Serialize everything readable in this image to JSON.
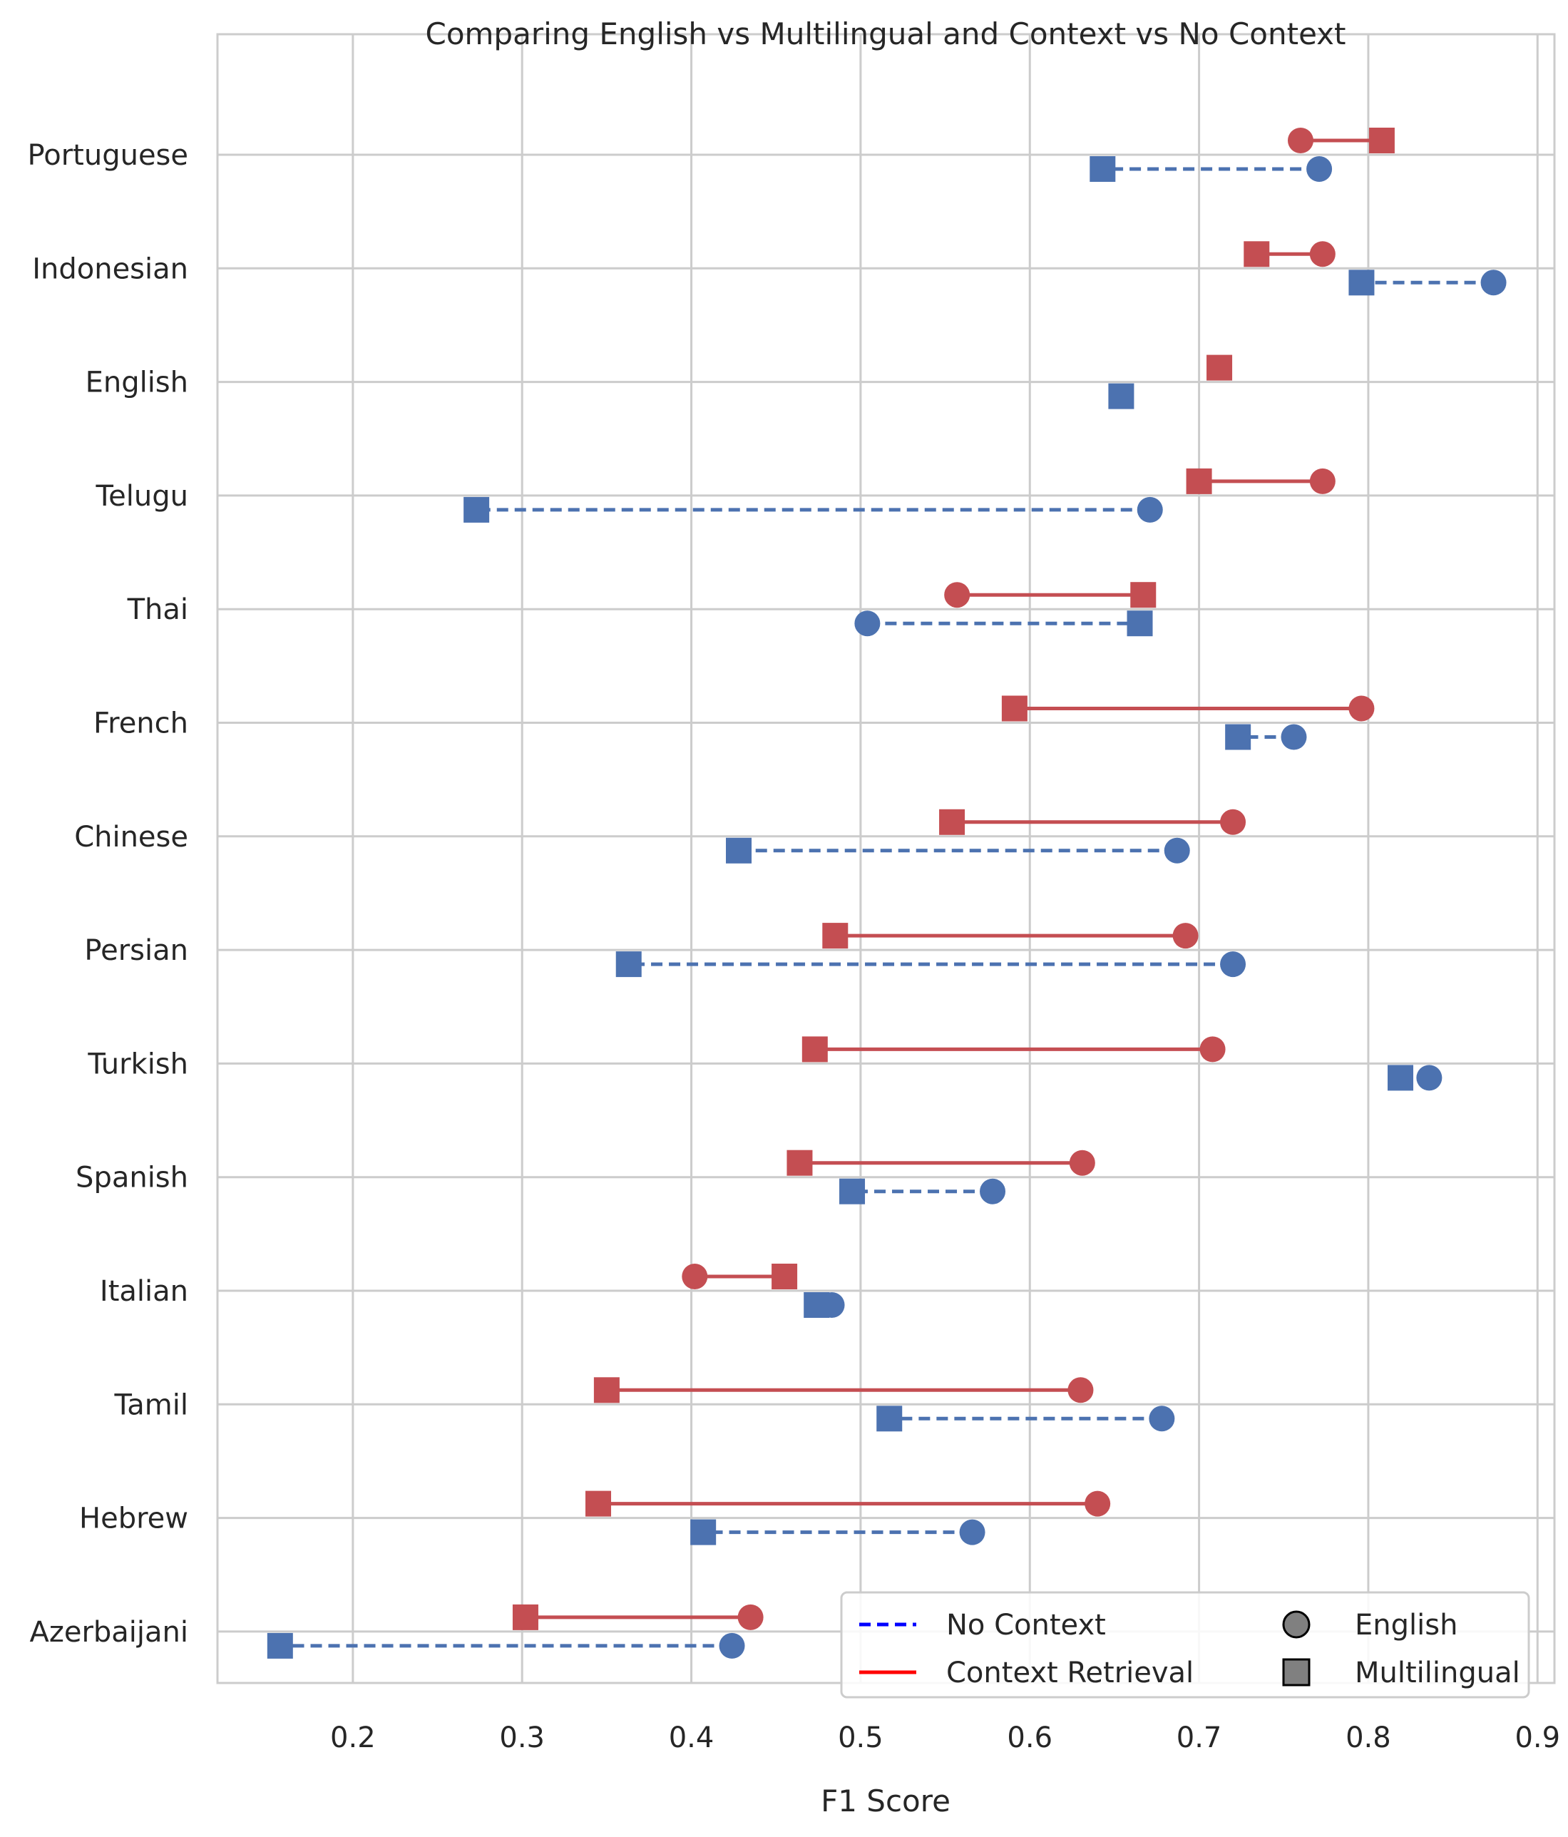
{
  "chart_data": {
    "type": "dumbbell",
    "title": "Comparing English vs Multilingual and Context vs No Context",
    "xlabel": "F1 Score",
    "ylabel": "",
    "xlim": [
      0.12,
      0.91
    ],
    "xticks": [
      0.2,
      0.3,
      0.4,
      0.5,
      0.6,
      0.7,
      0.8,
      0.9
    ],
    "xtick_labels": [
      "0.2",
      "0.3",
      "0.4",
      "0.5",
      "0.6",
      "0.7",
      "0.8",
      "0.9"
    ],
    "grid": true,
    "categories": [
      "Portuguese",
      "Indonesian",
      "English",
      "Telugu",
      "Thai",
      "French",
      "Chinese",
      "Persian",
      "Turkish",
      "Spanish",
      "Italian",
      "Tamil",
      "Hebrew",
      "Azerbaijani"
    ],
    "series": [
      {
        "key": "context",
        "name": "Context Retrieval",
        "color": "#c44e52",
        "line_style": "solid",
        "english": [
          0.76,
          0.773,
          null,
          0.773,
          0.557,
          0.796,
          0.72,
          0.692,
          0.708,
          0.631,
          0.402,
          0.63,
          0.64,
          0.435
        ],
        "multilingual": [
          0.808,
          0.734,
          0.712,
          0.7,
          0.667,
          0.591,
          0.554,
          0.485,
          0.473,
          0.464,
          0.455,
          0.35,
          0.345,
          0.302
        ]
      },
      {
        "key": "no_context",
        "name": "No Context",
        "color": "#4c72b0",
        "line_style": "dashed",
        "english": [
          0.771,
          0.874,
          null,
          0.671,
          0.504,
          0.756,
          0.687,
          0.72,
          0.836,
          0.578,
          0.483,
          0.678,
          0.566,
          0.424
        ],
        "multilingual": [
          0.643,
          0.796,
          0.654,
          0.273,
          0.665,
          0.723,
          0.428,
          0.363,
          0.819,
          0.495,
          0.474,
          0.517,
          0.407,
          0.157
        ]
      }
    ],
    "legend": {
      "position": "lower-right",
      "entries": [
        {
          "label": "No Context",
          "kind": "line",
          "style": "dashed",
          "color": "#0000ff"
        },
        {
          "label": "Context Retrieval",
          "kind": "line",
          "style": "solid",
          "color": "#ff0000"
        },
        {
          "label": "English",
          "kind": "marker",
          "marker": "circle",
          "color": "#808080"
        },
        {
          "label": "Multilingual",
          "kind": "marker",
          "marker": "square",
          "color": "#808080"
        }
      ]
    }
  }
}
